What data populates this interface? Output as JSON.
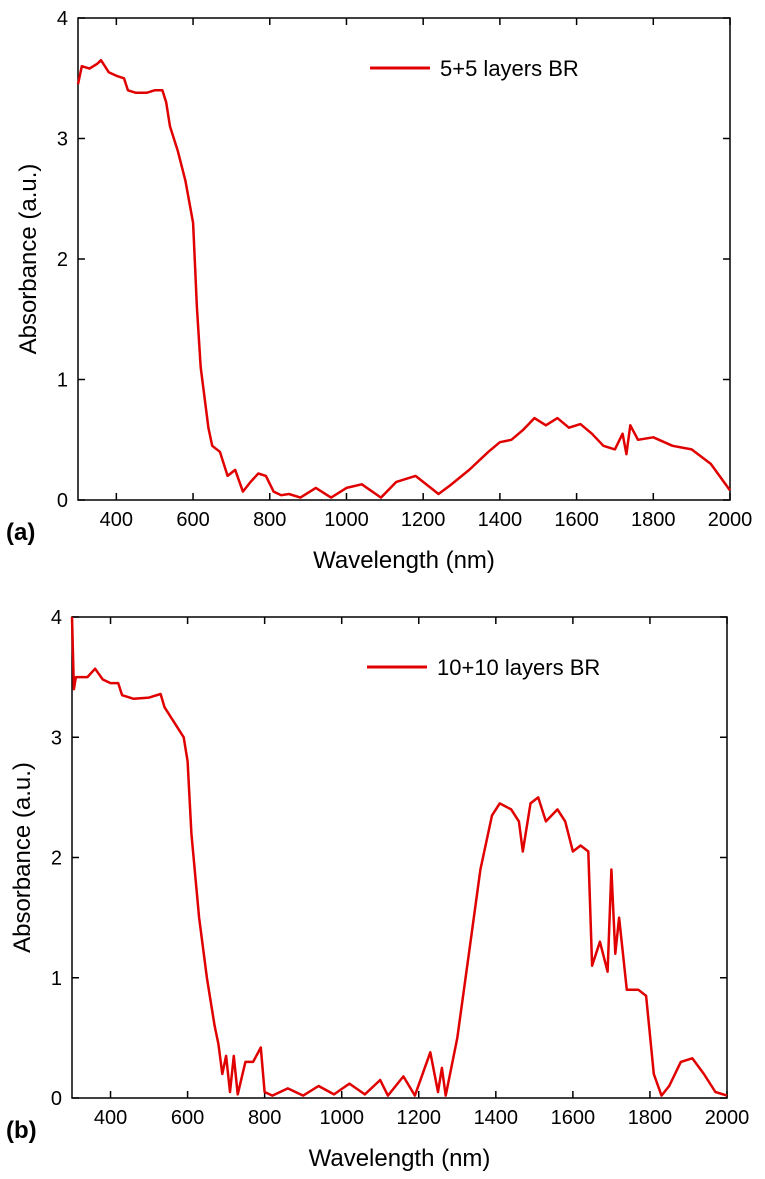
{
  "chart_data": [
    {
      "type": "line",
      "panel_label": "(a)",
      "xlabel": "Wavelength (nm)",
      "ylabel": "Absorbance (a.u.)",
      "xlim": [
        300,
        2000
      ],
      "ylim": [
        0,
        4
      ],
      "xticks": [
        400,
        600,
        800,
        1000,
        1200,
        1400,
        1600,
        1800,
        2000
      ],
      "yticks": [
        0,
        1,
        2,
        3,
        4
      ],
      "legend": "upper right",
      "x": [
        300,
        310,
        330,
        350,
        360,
        380,
        400,
        420,
        430,
        450,
        480,
        500,
        520,
        530,
        540,
        560,
        580,
        600,
        610,
        620,
        640,
        650,
        670,
        690,
        710,
        730,
        750,
        770,
        790,
        810,
        830,
        850,
        880,
        920,
        960,
        1000,
        1040,
        1090,
        1130,
        1180,
        1220,
        1240,
        1270,
        1320,
        1370,
        1400,
        1430,
        1460,
        1490,
        1520,
        1550,
        1580,
        1610,
        1640,
        1670,
        1700,
        1720,
        1730,
        1740,
        1760,
        1800,
        1850,
        1900,
        1950,
        2000
      ],
      "series": [
        {
          "name": "5+5 layers BR",
          "color": "#e00000",
          "values": [
            3.45,
            3.6,
            3.58,
            3.62,
            3.65,
            3.55,
            3.52,
            3.5,
            3.4,
            3.38,
            3.38,
            3.4,
            3.4,
            3.3,
            3.1,
            2.9,
            2.65,
            2.3,
            1.6,
            1.1,
            0.6,
            0.45,
            0.4,
            0.2,
            0.25,
            0.07,
            0.15,
            0.22,
            0.2,
            0.07,
            0.04,
            0.05,
            0.02,
            0.1,
            0.02,
            0.1,
            0.13,
            0.02,
            0.15,
            0.2,
            0.1,
            0.05,
            0.12,
            0.25,
            0.4,
            0.48,
            0.5,
            0.58,
            0.68,
            0.62,
            0.68,
            0.6,
            0.63,
            0.55,
            0.45,
            0.42,
            0.55,
            0.38,
            0.62,
            0.5,
            0.52,
            0.45,
            0.42,
            0.3,
            0.08
          ]
        }
      ]
    },
    {
      "type": "line",
      "panel_label": "(b)",
      "xlabel": "Wavelength (nm)",
      "ylabel": "Absorbance (a.u.)",
      "xlim": [
        300,
        2000
      ],
      "ylim": [
        0,
        4
      ],
      "xticks": [
        400,
        600,
        800,
        1000,
        1200,
        1400,
        1600,
        1800,
        2000
      ],
      "yticks": [
        0,
        1,
        2,
        3,
        4
      ],
      "legend": "upper right",
      "x": [
        300,
        305,
        310,
        340,
        360,
        380,
        400,
        420,
        430,
        460,
        500,
        530,
        540,
        570,
        590,
        600,
        610,
        630,
        650,
        670,
        680,
        690,
        700,
        710,
        720,
        730,
        750,
        770,
        790,
        800,
        820,
        860,
        900,
        940,
        980,
        1020,
        1060,
        1100,
        1120,
        1160,
        1190,
        1230,
        1250,
        1260,
        1270,
        1300,
        1330,
        1360,
        1390,
        1410,
        1440,
        1460,
        1470,
        1490,
        1510,
        1530,
        1560,
        1580,
        1600,
        1620,
        1640,
        1650,
        1670,
        1690,
        1700,
        1710,
        1720,
        1740,
        1770,
        1790,
        1810,
        1830,
        1850,
        1880,
        1910,
        1940,
        1970,
        2000
      ],
      "series": [
        {
          "name": "10+10 layers BR",
          "color": "#e00000",
          "values": [
            4.0,
            3.4,
            3.5,
            3.5,
            3.57,
            3.48,
            3.45,
            3.45,
            3.35,
            3.32,
            3.33,
            3.36,
            3.25,
            3.1,
            3.0,
            2.8,
            2.2,
            1.5,
            1.0,
            0.6,
            0.45,
            0.2,
            0.35,
            0.05,
            0.35,
            0.03,
            0.3,
            0.3,
            0.42,
            0.05,
            0.02,
            0.08,
            0.02,
            0.1,
            0.03,
            0.12,
            0.03,
            0.15,
            0.02,
            0.18,
            0.02,
            0.38,
            0.05,
            0.25,
            0.02,
            0.5,
            1.2,
            1.9,
            2.35,
            2.45,
            2.4,
            2.3,
            2.05,
            2.45,
            2.5,
            2.3,
            2.4,
            2.3,
            2.05,
            2.1,
            2.05,
            1.1,
            1.3,
            1.05,
            1.9,
            1.2,
            1.5,
            0.9,
            0.9,
            0.85,
            0.2,
            0.02,
            0.1,
            0.3,
            0.33,
            0.2,
            0.05,
            0.02
          ]
        }
      ]
    }
  ]
}
